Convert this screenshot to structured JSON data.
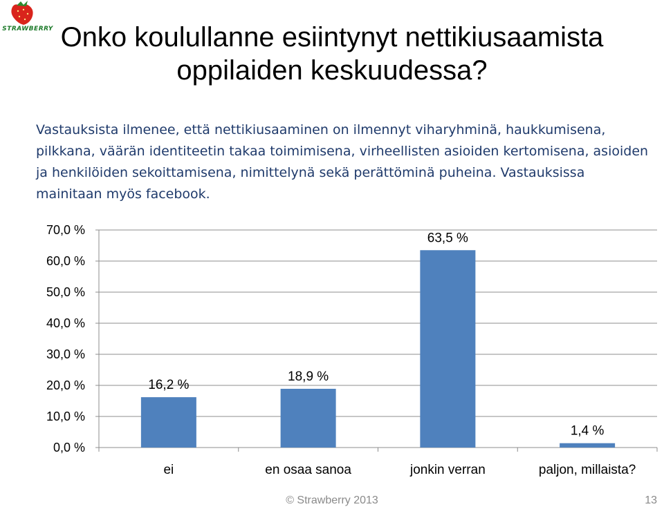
{
  "logo": {
    "icon": "strawberry-icon",
    "text": "STRAWBERRY"
  },
  "title": [
    "Onko koulullanne esiintynyt nettikiusaamista",
    "oppilaiden keskuudessa?"
  ],
  "description": "Vastauksista ilmenee, että nettikiusaaminen on ilmennyt viharyhminä, haukkumisena, pilkkana, väärän identiteetin takaa toimimisena, virheellisten asioiden kertomisena, asioiden ja henkilöiden sekoittamisena, nimittelynä sekä perättöminä puheina. Vastauksissa mainitaan myös facebook.",
  "chart_data": {
    "type": "bar",
    "categories": [
      "ei",
      "en osaa sanoa",
      "jonkin verran",
      "paljon, millaista?"
    ],
    "values": [
      16.2,
      18.9,
      63.5,
      1.4
    ],
    "data_labels": [
      "16,2 %",
      "18,9 %",
      "63,5 %",
      "1,4 %"
    ],
    "ylim": [
      0,
      70
    ],
    "yticks": [
      0,
      10,
      20,
      30,
      40,
      50,
      60,
      70
    ],
    "ytick_labels": [
      "0,0 %",
      "10,0 %",
      "20,0 %",
      "30,0 %",
      "40,0 %",
      "50,0 %",
      "60,0 %",
      "70,0 %"
    ],
    "bar_color": "#4f81bd",
    "gridlines": true
  },
  "footer": {
    "copyright": "© Strawberry 2013",
    "page_number": "13"
  }
}
